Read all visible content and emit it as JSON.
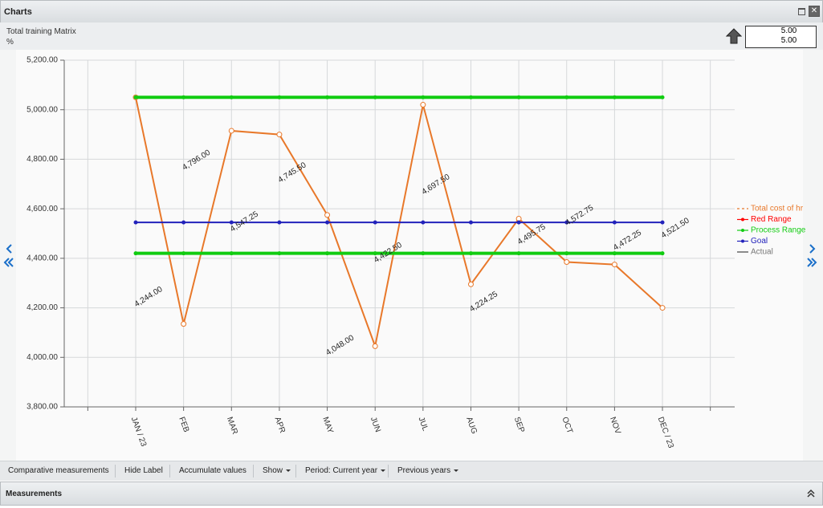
{
  "header": {
    "title": "Charts"
  },
  "info": {
    "title": "Total training Matrix",
    "unit": "%",
    "values": [
      "5.00",
      "5.00"
    ]
  },
  "chart_data": {
    "type": "line",
    "categories": [
      "JAN / 23",
      "FEB",
      "MAR",
      "APR",
      "MAY",
      "JUN",
      "JUL",
      "AUG",
      "SEP",
      "OCT",
      "NOV",
      "DEC / 23"
    ],
    "ylim": [
      3800,
      5200
    ],
    "yticks": [
      {
        "value": 3800,
        "label": "3,800.00"
      },
      {
        "value": 4000,
        "label": "4,000.00"
      },
      {
        "value": 4200,
        "label": "4,200.00"
      },
      {
        "value": 4400,
        "label": "4,400.00"
      },
      {
        "value": 4600,
        "label": "4,600.00"
      },
      {
        "value": 4800,
        "label": "4,800.00"
      },
      {
        "value": 5000,
        "label": "5,000.00"
      },
      {
        "value": 5200,
        "label": "5,200.00"
      }
    ],
    "grid": true,
    "legend": "right",
    "series": [
      {
        "name": "Total cost of hr",
        "color": "#e8782a",
        "values": [
          5050,
          4135,
          4915,
          4900,
          4575,
          4045,
          5020,
          4295,
          4560,
          4385,
          4375,
          4200
        ]
      },
      {
        "name": "Red Range",
        "color": "#ff0000"
      },
      {
        "name": "Process Range",
        "color": "#11cc11",
        "values": [
          5050,
          5050,
          5050,
          5050,
          5050,
          5050,
          5050,
          5050,
          5050,
          5050,
          5050,
          5050
        ],
        "lower_values": [
          4420,
          4420,
          4420,
          4420,
          4420,
          4420,
          4420,
          4420,
          4420,
          4420,
          4420,
          4420
        ]
      },
      {
        "name": "Goal",
        "color": "#2222bb",
        "values": [
          4545,
          4545,
          4545,
          4545,
          4545,
          4545,
          4545,
          4545,
          4545,
          4545,
          4545,
          4545
        ]
      },
      {
        "name": "Actual",
        "color": "#444444",
        "values": [
          4244,
          4796,
          4547.25,
          4745.5,
          4048,
          4422.5,
          4697.5,
          4224.25,
          4495.75,
          4572.75,
          4472.25,
          4521.5
        ],
        "value_labels": [
          "4,244.00",
          "4,796.00",
          "4,547.25",
          "4,745.50",
          "4,048.00",
          "4,422.50",
          "4,697.50",
          "4,224.25",
          "4,495.75",
          "4,572.75",
          "4,472.25",
          "4,521.50"
        ]
      }
    ]
  },
  "toolbar": {
    "buttons": [
      "Comparative measurements",
      "Hide Label",
      "Accumulate values",
      "Show",
      "Period: Current year",
      "Previous years"
    ]
  },
  "footer": {
    "title": "Measurements"
  }
}
